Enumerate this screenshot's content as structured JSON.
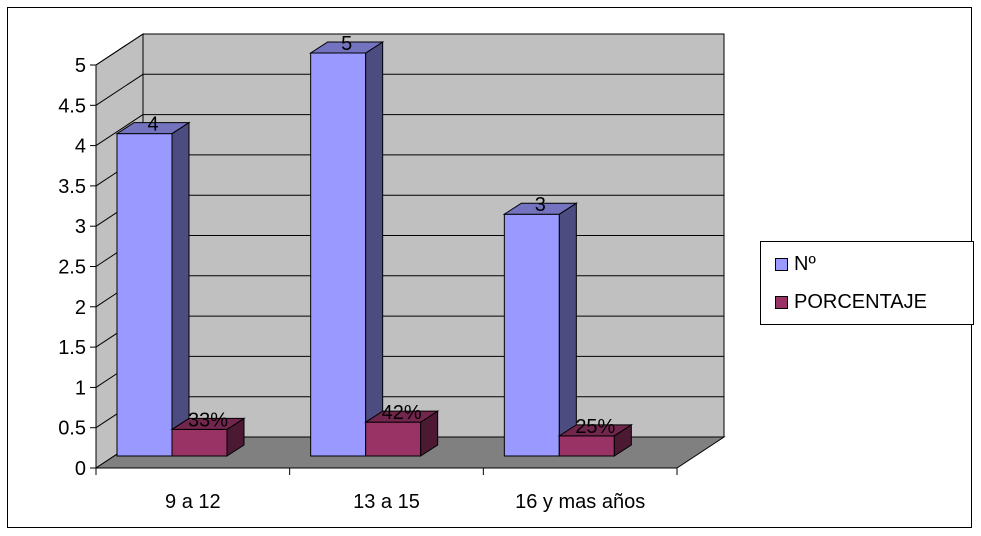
{
  "chart_data": {
    "type": "bar",
    "categories": [
      "9 a 12",
      "13 a 15",
      "16 y mas años"
    ],
    "series": [
      {
        "name": "Nº",
        "values": [
          4,
          5,
          3
        ],
        "labels": [
          "4",
          "5",
          "3"
        ],
        "color": "#9999ff",
        "side_color": "#4c4c80",
        "top_color": "#7373bf"
      },
      {
        "name": "PORCENTAJE",
        "values": [
          0.33,
          0.42,
          0.25
        ],
        "labels": [
          "33%",
          "42%",
          "25%"
        ],
        "color": "#993366",
        "side_color": "#4c1933",
        "top_color": "#73264d"
      }
    ],
    "yticks": [
      "0",
      "0.5",
      "1",
      "1.5",
      "2",
      "2.5",
      "3",
      "3.5",
      "4",
      "4.5",
      "5"
    ],
    "ylim": [
      0,
      5
    ],
    "grid": true,
    "legend_position": "right",
    "wall_color": "#c0c0c0",
    "floor_color": "#808080"
  }
}
